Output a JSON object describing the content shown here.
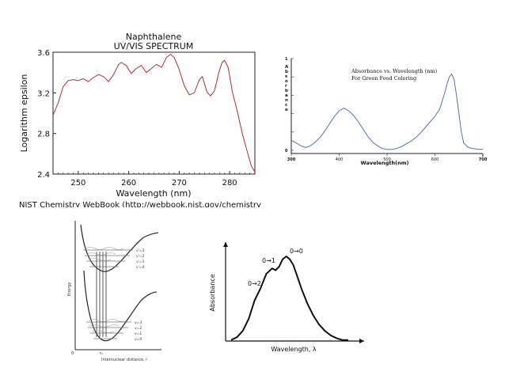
{
  "slide": {
    "credit": "NIST Chemistry WebBook (http://webbook.nist.gov/chemistry)"
  },
  "chart_data": [
    {
      "type": "line",
      "title": "Naphthalene",
      "subtitle": "UV/VIS SPECTRUM",
      "xlabel": "Wavelength (nm)",
      "ylabel": "Logarithm epsilon",
      "xlim": [
        245,
        285
      ],
      "ylim": [
        2.4,
        3.6
      ],
      "xticks": [
        250,
        260,
        270,
        280
      ],
      "yticks": [
        2.4,
        2.8,
        3.2,
        3.6
      ],
      "ytick_labels": [
        "2.4",
        "2.8",
        "3.2",
        "3.6"
      ],
      "line_color": "#b03030",
      "x": [
        245.0,
        246.0,
        247.0,
        248.0,
        249.0,
        250.0,
        251.0,
        252.0,
        253.0,
        254.0,
        255.0,
        256.0,
        257.0,
        258.0,
        258.5,
        259.5,
        260.5,
        261.5,
        262.5,
        263.5,
        264.5,
        265.5,
        266.5,
        267.5,
        268.3,
        269.0,
        270.0,
        271.0,
        272.0,
        273.0,
        274.0,
        274.6,
        275.5,
        276.2,
        277.0,
        277.8,
        278.5,
        279.0,
        279.7,
        280.5,
        281.5,
        282.5,
        283.5,
        284.3,
        285.0
      ],
      "y": [
        2.98,
        3.1,
        3.26,
        3.32,
        3.33,
        3.32,
        3.34,
        3.31,
        3.35,
        3.38,
        3.36,
        3.31,
        3.38,
        3.48,
        3.5,
        3.47,
        3.39,
        3.44,
        3.47,
        3.4,
        3.44,
        3.48,
        3.45,
        3.55,
        3.58,
        3.55,
        3.43,
        3.27,
        3.18,
        3.2,
        3.33,
        3.36,
        3.21,
        3.17,
        3.22,
        3.39,
        3.5,
        3.52,
        3.45,
        3.22,
        3.02,
        2.8,
        2.62,
        2.48,
        2.42
      ]
    },
    {
      "type": "line",
      "title": "Absorbance vs. Wavelength (nm)",
      "subtitle": "For Green Food Coloring",
      "xlabel": "Wavelength(nm)",
      "ylabel": "Absorbance",
      "xlim": [
        300,
        700
      ],
      "ylim": [
        0,
        1
      ],
      "xticks": [
        300,
        400,
        500,
        600,
        700
      ],
      "xtick_labels": [
        "300",
        "400",
        "500",
        "600",
        "700"
      ],
      "yticks": [
        0,
        1
      ],
      "ytick_labels": [
        "0",
        "1"
      ],
      "line_color": "#5a6fb8",
      "x": [
        300,
        310,
        320,
        330,
        340,
        350,
        360,
        370,
        380,
        390,
        400,
        410,
        420,
        430,
        440,
        450,
        460,
        470,
        480,
        490,
        500,
        510,
        520,
        530,
        540,
        550,
        560,
        570,
        580,
        590,
        600,
        610,
        620,
        625,
        630,
        635,
        640,
        645,
        650,
        655,
        660,
        670,
        680,
        690,
        700
      ],
      "y": [
        0.11,
        0.08,
        0.05,
        0.03,
        0.05,
        0.09,
        0.14,
        0.21,
        0.29,
        0.37,
        0.43,
        0.46,
        0.43,
        0.38,
        0.31,
        0.23,
        0.15,
        0.09,
        0.05,
        0.02,
        0.01,
        0.01,
        0.02,
        0.04,
        0.07,
        0.1,
        0.14,
        0.19,
        0.25,
        0.31,
        0.37,
        0.45,
        0.62,
        0.72,
        0.8,
        0.83,
        0.77,
        0.6,
        0.4,
        0.2,
        0.08,
        0.03,
        0.02,
        0.01,
        0.01
      ]
    },
    {
      "type": "diagram",
      "ylabel": "Energy",
      "xlabel": "Internuclear distance, r",
      "upper_levels": [
        "v'=3",
        "v'=2",
        "v'=1",
        "v'=0"
      ],
      "lower_levels": [
        "v=3",
        "v=2",
        "v=1",
        "v=0"
      ],
      "origin_label": "0",
      "r_label": "r₀"
    },
    {
      "type": "line",
      "xlabel": "Wavelength, λ",
      "ylabel": "Absorbance",
      "annotations": [
        "0→0",
        "0→1",
        "0→2"
      ],
      "x": [
        0,
        5,
        10,
        15,
        20,
        25,
        30,
        35,
        38,
        41,
        44,
        47,
        50,
        53,
        56,
        60,
        65,
        70,
        75,
        80,
        85,
        90,
        95,
        100
      ],
      "y": [
        0.02,
        0.05,
        0.12,
        0.25,
        0.45,
        0.58,
        0.74,
        0.8,
        0.78,
        0.82,
        0.9,
        0.93,
        0.9,
        0.84,
        0.73,
        0.58,
        0.42,
        0.29,
        0.19,
        0.12,
        0.07,
        0.04,
        0.02,
        0.02
      ]
    }
  ]
}
